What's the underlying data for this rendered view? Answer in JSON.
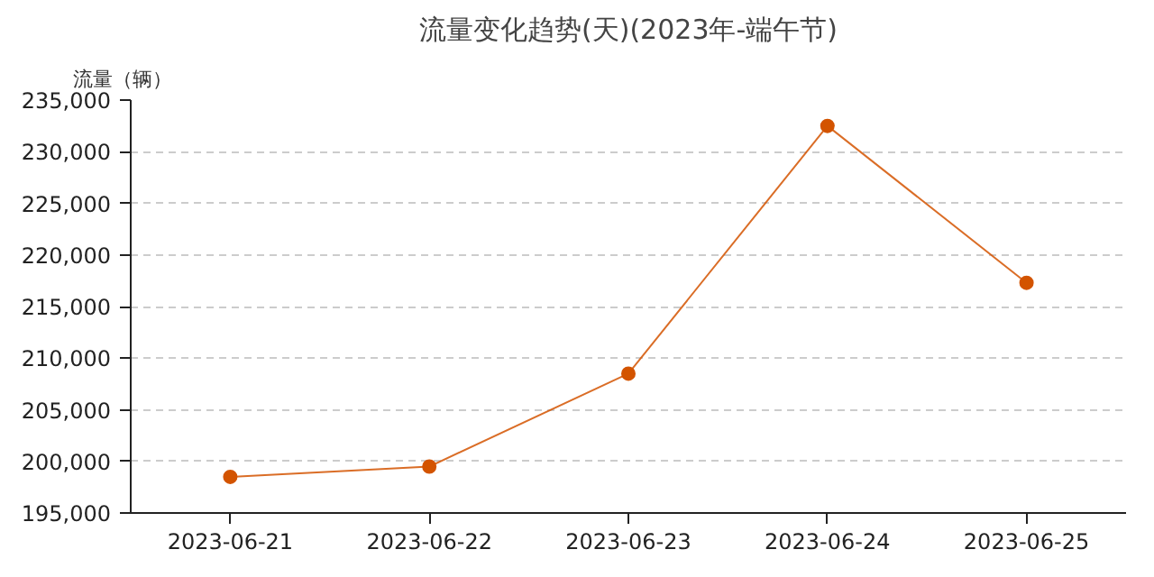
{
  "chart_data": {
    "type": "line",
    "title": "流量变化趋势(天)(2023年-端午节)",
    "ylabel": "流量（辆）",
    "categories": [
      "2023-06-21",
      "2023-06-22",
      "2023-06-23",
      "2023-06-24",
      "2023-06-25"
    ],
    "series": [
      {
        "color": "#d35400",
        "values": [
          198500,
          199500,
          208500,
          232500,
          217300
        ]
      }
    ],
    "ylim": [
      195000,
      235000
    ],
    "yticks": [
      {
        "value": 195000,
        "label": "195,000"
      },
      {
        "value": 200000,
        "label": "200,000"
      },
      {
        "value": 205000,
        "label": "205,000"
      },
      {
        "value": 210000,
        "label": "210,000"
      },
      {
        "value": 215000,
        "label": "215,000"
      },
      {
        "value": 220000,
        "label": "220,000"
      },
      {
        "value": 225000,
        "label": "225,000"
      },
      {
        "value": 230000,
        "label": "230,000"
      },
      {
        "value": 235000,
        "label": "235,000"
      }
    ],
    "grid": "y",
    "marker": "circle",
    "line_style": "solid"
  }
}
